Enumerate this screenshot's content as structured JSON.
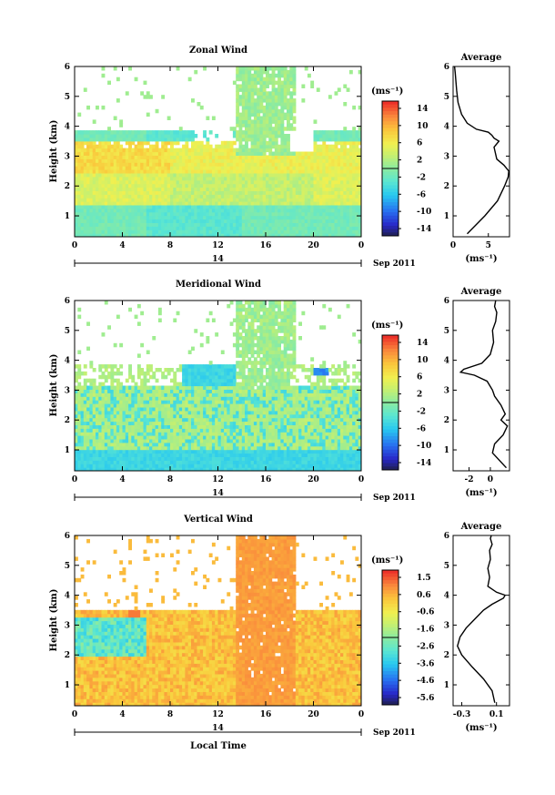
{
  "chart_data": [
    {
      "type": "heatmap",
      "title": "Zonal Wind",
      "xlabel": "",
      "ylabel": "Height (km)",
      "xlim": [
        0,
        24
      ],
      "ylim": [
        0.3,
        6
      ],
      "xticks": [
        "0",
        "4",
        "8",
        "12",
        "16",
        "20",
        "0"
      ],
      "yticks": [
        "1",
        "2",
        "3",
        "4",
        "5",
        "6"
      ],
      "date_bar": {
        "label": "14",
        "suffix": "Sep 2011"
      },
      "colorbar": {
        "unit": "(ms⁻¹)",
        "ticks": [
          "14",
          "10",
          "6",
          "2",
          "-2",
          "-6",
          "-10",
          "-14"
        ],
        "range": [
          -16,
          16
        ]
      },
      "average_panel": {
        "title": "Average",
        "xlabel": "(ms⁻¹)",
        "xticks": [
          "0",
          "5"
        ],
        "yticks": [
          "1",
          "2",
          "3",
          "4",
          "5",
          "6"
        ],
        "xlim": [
          0,
          8
        ],
        "profile_x": [
          2.0,
          4.5,
          6.3,
          7.3,
          7.8,
          7.9,
          7.2,
          6.2,
          6.0,
          5.8,
          6.5,
          5.8,
          5.5,
          5.0,
          3.3,
          2.0,
          1.2,
          0.7,
          0.5,
          0.4,
          0.3,
          0.2
        ],
        "profile_y": [
          0.4,
          1.0,
          1.5,
          2.0,
          2.3,
          2.5,
          2.7,
          2.9,
          3.1,
          3.3,
          3.5,
          3.6,
          3.7,
          3.8,
          3.9,
          4.1,
          4.4,
          4.8,
          5.2,
          5.5,
          5.8,
          6.0
        ]
      }
    },
    {
      "type": "heatmap",
      "title": "Meridional Wind",
      "xlabel": "",
      "ylabel": "Height (km)",
      "xlim": [
        0,
        24
      ],
      "ylim": [
        0.3,
        6
      ],
      "xticks": [
        "0",
        "4",
        "8",
        "12",
        "16",
        "20",
        "0"
      ],
      "yticks": [
        "1",
        "2",
        "3",
        "4",
        "5",
        "6"
      ],
      "date_bar": {
        "label": "14",
        "suffix": "Sep 2011"
      },
      "colorbar": {
        "unit": "(ms⁻¹)",
        "ticks": [
          "14",
          "10",
          "6",
          "2",
          "-2",
          "-6",
          "-10",
          "-14"
        ],
        "range": [
          -16,
          16
        ]
      },
      "average_panel": {
        "title": "Average",
        "xlabel": "(ms⁻¹)",
        "xticks": [
          "-2",
          "0"
        ],
        "yticks": [
          "1",
          "2",
          "3",
          "4",
          "5",
          "6"
        ],
        "xlim": [
          -3.5,
          1.8
        ],
        "profile_x": [
          1.5,
          0.2,
          0.4,
          1.2,
          1.6,
          1.0,
          1.4,
          1.0,
          0.4,
          0.2,
          -0.3,
          -1.5,
          -2.8,
          -2.5,
          -0.8,
          0.0,
          0.3,
          0.2,
          0.5,
          0.6,
          0.4,
          0.5
        ],
        "profile_y": [
          0.4,
          0.9,
          1.2,
          1.5,
          1.8,
          2.0,
          2.2,
          2.5,
          2.8,
          3.0,
          3.3,
          3.5,
          3.6,
          3.7,
          3.9,
          4.2,
          4.6,
          5.0,
          5.3,
          5.6,
          5.8,
          6.0
        ]
      }
    },
    {
      "type": "heatmap",
      "title": "Vertical Wind",
      "xlabel": "Local Time",
      "ylabel": "Height (km)",
      "xlim": [
        0,
        24
      ],
      "ylim": [
        0.3,
        6
      ],
      "xticks": [
        "0",
        "4",
        "8",
        "12",
        "16",
        "20",
        "0"
      ],
      "yticks": [
        "1",
        "2",
        "3",
        "4",
        "5",
        "6"
      ],
      "date_bar": {
        "label": "14",
        "suffix": "Sep 2011"
      },
      "colorbar": {
        "unit": "(ms⁻¹)",
        "ticks": [
          "1.5",
          "0.6",
          "-0.6",
          "-1.6",
          "-2.6",
          "-3.6",
          "-4.6",
          "-5.6"
        ],
        "range": [
          -6.1,
          2.0
        ]
      },
      "average_panel": {
        "title": "Average",
        "xlabel": "(ms⁻¹)",
        "xticks": [
          "-0.3",
          "0.1"
        ],
        "yticks": [
          "1",
          "2",
          "3",
          "4",
          "5",
          "6"
        ],
        "xlim": [
          -0.4,
          0.25
        ],
        "profile_x": [
          0.08,
          0.05,
          -0.05,
          -0.18,
          -0.3,
          -0.35,
          -0.32,
          -0.25,
          -0.15,
          -0.05,
          0.05,
          0.18,
          0.2,
          0.1,
          0.0,
          0.02,
          0.0,
          0.03,
          0.02,
          0.05,
          0.03,
          0.04
        ],
        "profile_y": [
          0.4,
          0.8,
          1.2,
          1.6,
          2.0,
          2.3,
          2.6,
          2.9,
          3.2,
          3.5,
          3.7,
          3.9,
          4.0,
          4.1,
          4.3,
          4.6,
          4.9,
          5.2,
          5.5,
          5.7,
          5.9,
          6.0
        ]
      }
    }
  ]
}
